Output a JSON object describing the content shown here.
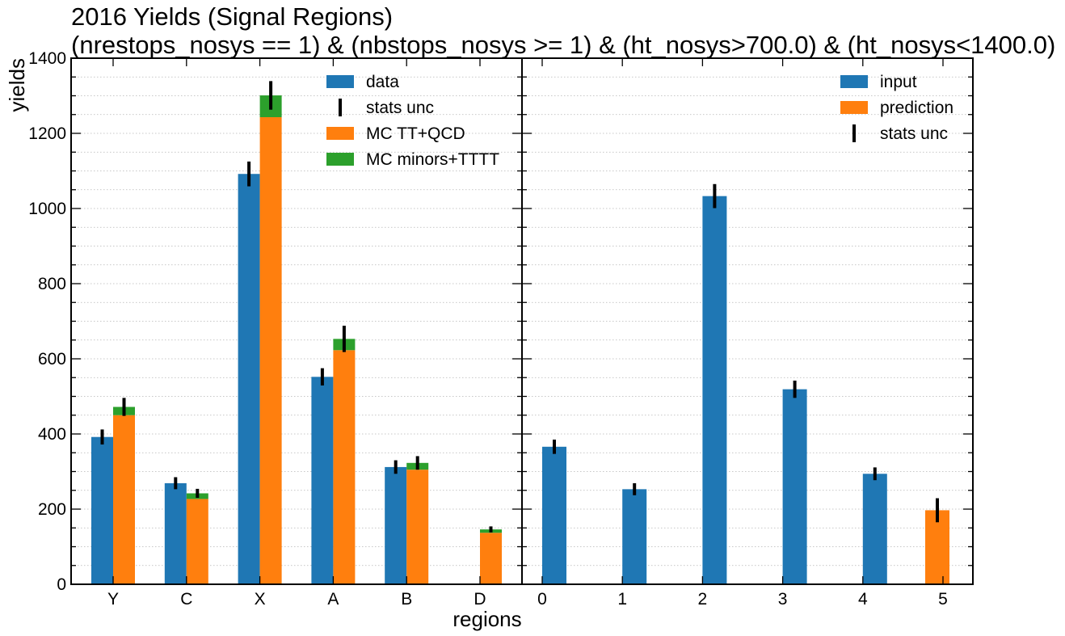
{
  "chart_data": {
    "type": "bar",
    "title": "2016 Yields (Signal Regions)",
    "subtitle": "(nrestops_nosys == 1) & (nbstops_nosys >= 1) & (ht_nosys>700.0) & (ht_nosys<1400.0)",
    "xlabel": "regions",
    "ylabel": "yields",
    "ylim": [
      0,
      1400
    ],
    "yticks": [
      0,
      200,
      400,
      600,
      800,
      1000,
      1200,
      1400
    ],
    "grid": true,
    "colors": {
      "data": "#1f77b4",
      "mc_tt_qcd": "#ff7f0e",
      "mc_minors": "#2ca02c",
      "err": "#000000"
    },
    "panels": [
      {
        "categories": [
          "Y",
          "C",
          "X",
          "A",
          "B",
          "D"
        ],
        "legend_position": "top-right",
        "legend": [
          "data",
          "stats unc",
          "MC TT+QCD",
          "MC minors+TTTT"
        ],
        "series": [
          {
            "name": "data",
            "values": [
              392,
              269,
              1092,
              552,
              312,
              null
            ],
            "errors": [
              20,
              16,
              33,
              23,
              18,
              null
            ]
          },
          {
            "name": "MC TT+QCD",
            "values": [
              450,
              227,
              1243,
              623,
              305,
              137
            ]
          },
          {
            "name": "MC minors+TTTT",
            "values": [
              22,
              15,
              58,
              30,
              18,
              9
            ]
          },
          {
            "name": "stats unc",
            "totals": [
              472,
              242,
              1301,
              653,
              323,
              146
            ],
            "errors": [
              24,
              12,
              38,
              35,
              18,
              8
            ]
          }
        ]
      },
      {
        "categories": [
          "0",
          "1",
          "2",
          "3",
          "4",
          "5"
        ],
        "legend_position": "top-right",
        "legend": [
          "input",
          "prediction",
          "stats unc"
        ],
        "series": [
          {
            "name": "input",
            "values": [
              366,
              253,
              1033,
              519,
              294,
              null
            ],
            "errors": [
              19,
              16,
              32,
              23,
              17,
              null
            ]
          },
          {
            "name": "prediction",
            "values": [
              null,
              null,
              null,
              null,
              null,
              197
            ],
            "errors": [
              null,
              null,
              null,
              null,
              null,
              32
            ]
          }
        ]
      }
    ]
  }
}
